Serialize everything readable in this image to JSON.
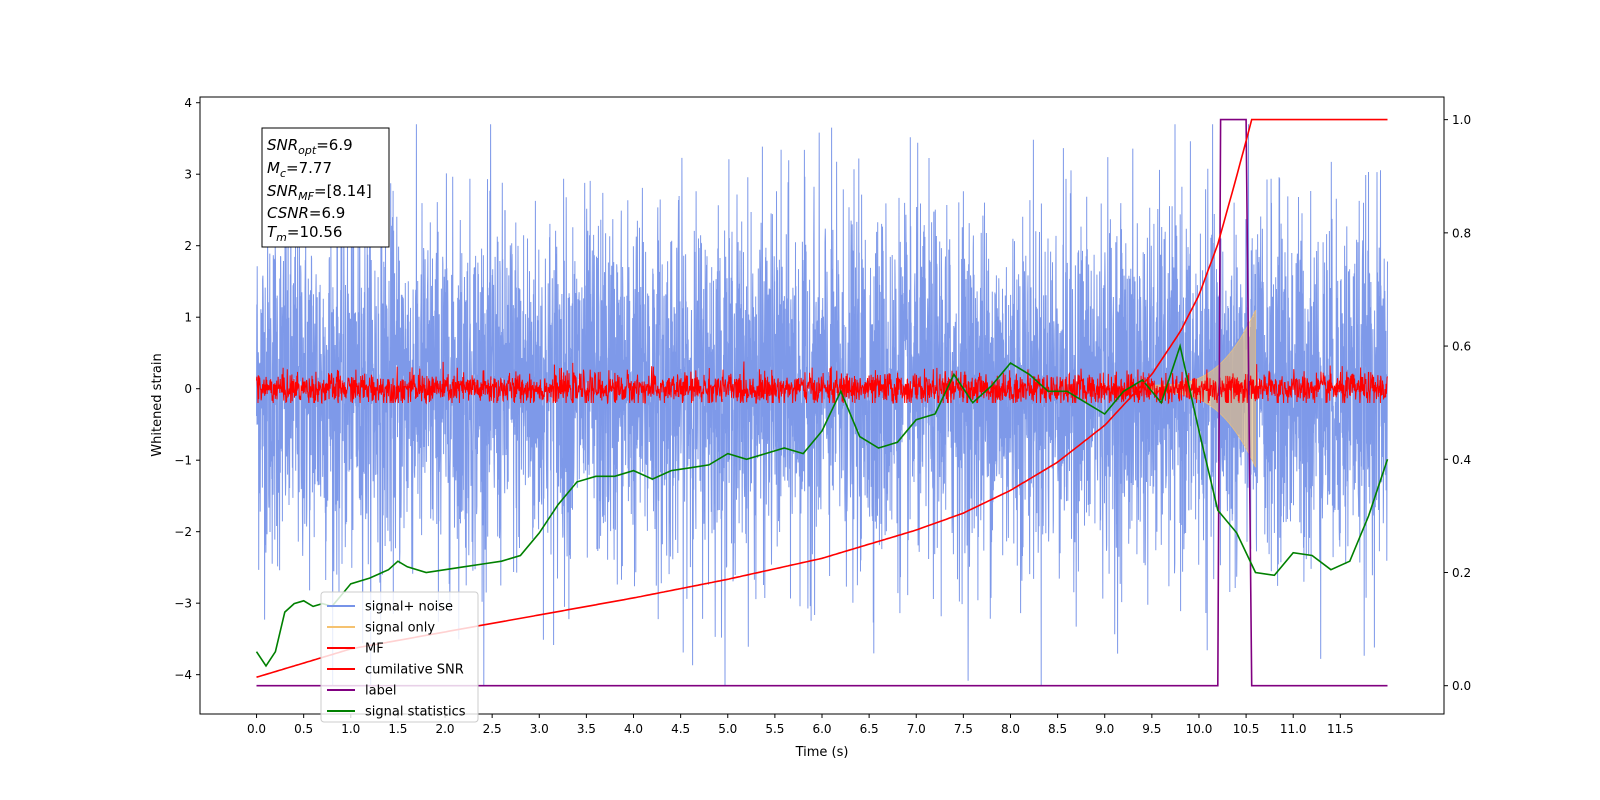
{
  "chart_data": {
    "type": "line",
    "xlabel": "Time (s)",
    "ylabel": "Whitened strain",
    "xlim": [
      -0.6,
      12.6
    ],
    "ylim": [
      -4.55,
      4.08
    ],
    "ylim_right": [
      -0.05,
      1.04
    ],
    "x_ticks": [
      "0.0",
      "0.5",
      "1.0",
      "1.5",
      "2.0",
      "2.5",
      "3.0",
      "3.5",
      "4.0",
      "4.5",
      "5.0",
      "5.5",
      "6.0",
      "6.5",
      "7.0",
      "7.5",
      "8.0",
      "8.5",
      "9.0",
      "9.5",
      "10.0",
      "10.5",
      "11.0",
      "11.5"
    ],
    "y_ticks_left": [
      "4",
      "3",
      "2",
      "1",
      "0",
      "−1",
      "−2",
      "−3",
      "−4"
    ],
    "y_ticks_right": [
      "1.0",
      "0.8",
      "0.6",
      "0.4",
      "0.2",
      "0.0"
    ],
    "grid": false,
    "legend_position": "lower-left",
    "stats": {
      "snr_opt": "=6.9",
      "mc": "=7.77",
      "snr_mf": "=[8.14]",
      "csnr": "=6.9",
      "tm": "=10.56"
    },
    "series": [
      {
        "name": "signal+ noise",
        "axis": "left",
        "color": "#7793e8",
        "x_range": [
          0,
          12.0
        ],
        "typical_band": [
          -1.6,
          1.6
        ],
        "peak_extent": [
          -4.15,
          3.7
        ]
      },
      {
        "name": "signal only",
        "axis": "left",
        "color": "#f5c270",
        "x_range": [
          9.5,
          10.6
        ],
        "envelope_start": 0.05,
        "envelope_end": 1.1
      },
      {
        "name": "MF",
        "axis": "left",
        "color": "#ff0000",
        "x_range": [
          0,
          12.0
        ],
        "typical_band": [
          -0.17,
          0.17
        ],
        "peak_extent": [
          -0.2,
          0.38
        ]
      },
      {
        "name": "cumilative SNR",
        "axis": "right",
        "color": "#ff0000",
        "x": [
          0.0,
          1.0,
          2.0,
          3.0,
          4.0,
          5.0,
          6.0,
          7.0,
          7.5,
          8.0,
          8.5,
          9.0,
          9.5,
          9.8,
          10.0,
          10.2,
          10.4,
          10.56,
          12.0
        ],
        "values": [
          0.015,
          0.065,
          0.095,
          0.125,
          0.155,
          0.188,
          0.225,
          0.275,
          0.305,
          0.345,
          0.395,
          0.46,
          0.55,
          0.625,
          0.69,
          0.78,
          0.9,
          1.0,
          1.0
        ]
      },
      {
        "name": "label",
        "axis": "right",
        "color": "#800080",
        "x": [
          0.0,
          10.2,
          10.23,
          10.5,
          10.56,
          12.0
        ],
        "values": [
          0.0,
          0.0,
          1.0,
          1.0,
          0.0,
          0.0
        ]
      },
      {
        "name": "signal statistics",
        "axis": "right",
        "color": "#008000",
        "x": [
          0.0,
          0.1,
          0.2,
          0.3,
          0.4,
          0.5,
          0.6,
          0.7,
          0.8,
          0.9,
          1.0,
          1.2,
          1.4,
          1.5,
          1.6,
          1.8,
          2.0,
          2.2,
          2.4,
          2.6,
          2.8,
          3.0,
          3.2,
          3.4,
          3.6,
          3.8,
          4.0,
          4.2,
          4.4,
          4.6,
          4.8,
          5.0,
          5.2,
          5.4,
          5.6,
          5.8,
          6.0,
          6.2,
          6.4,
          6.6,
          6.8,
          7.0,
          7.2,
          7.4,
          7.6,
          7.8,
          8.0,
          8.2,
          8.4,
          8.6,
          8.8,
          9.0,
          9.2,
          9.4,
          9.6,
          9.8,
          10.0,
          10.2,
          10.4,
          10.6,
          10.8,
          11.0,
          11.2,
          11.4,
          11.6,
          11.8,
          12.0
        ],
        "values": [
          0.06,
          0.035,
          0.06,
          0.13,
          0.145,
          0.15,
          0.14,
          0.145,
          0.14,
          0.16,
          0.18,
          0.19,
          0.205,
          0.22,
          0.21,
          0.2,
          0.205,
          0.21,
          0.215,
          0.22,
          0.23,
          0.27,
          0.32,
          0.36,
          0.37,
          0.37,
          0.38,
          0.365,
          0.38,
          0.385,
          0.39,
          0.41,
          0.4,
          0.41,
          0.42,
          0.41,
          0.45,
          0.52,
          0.44,
          0.42,
          0.43,
          0.47,
          0.48,
          0.55,
          0.5,
          0.53,
          0.57,
          0.55,
          0.52,
          0.52,
          0.5,
          0.48,
          0.52,
          0.54,
          0.5,
          0.6,
          0.45,
          0.31,
          0.27,
          0.2,
          0.195,
          0.235,
          0.23,
          0.205,
          0.22,
          0.3,
          0.4
        ]
      }
    ]
  }
}
